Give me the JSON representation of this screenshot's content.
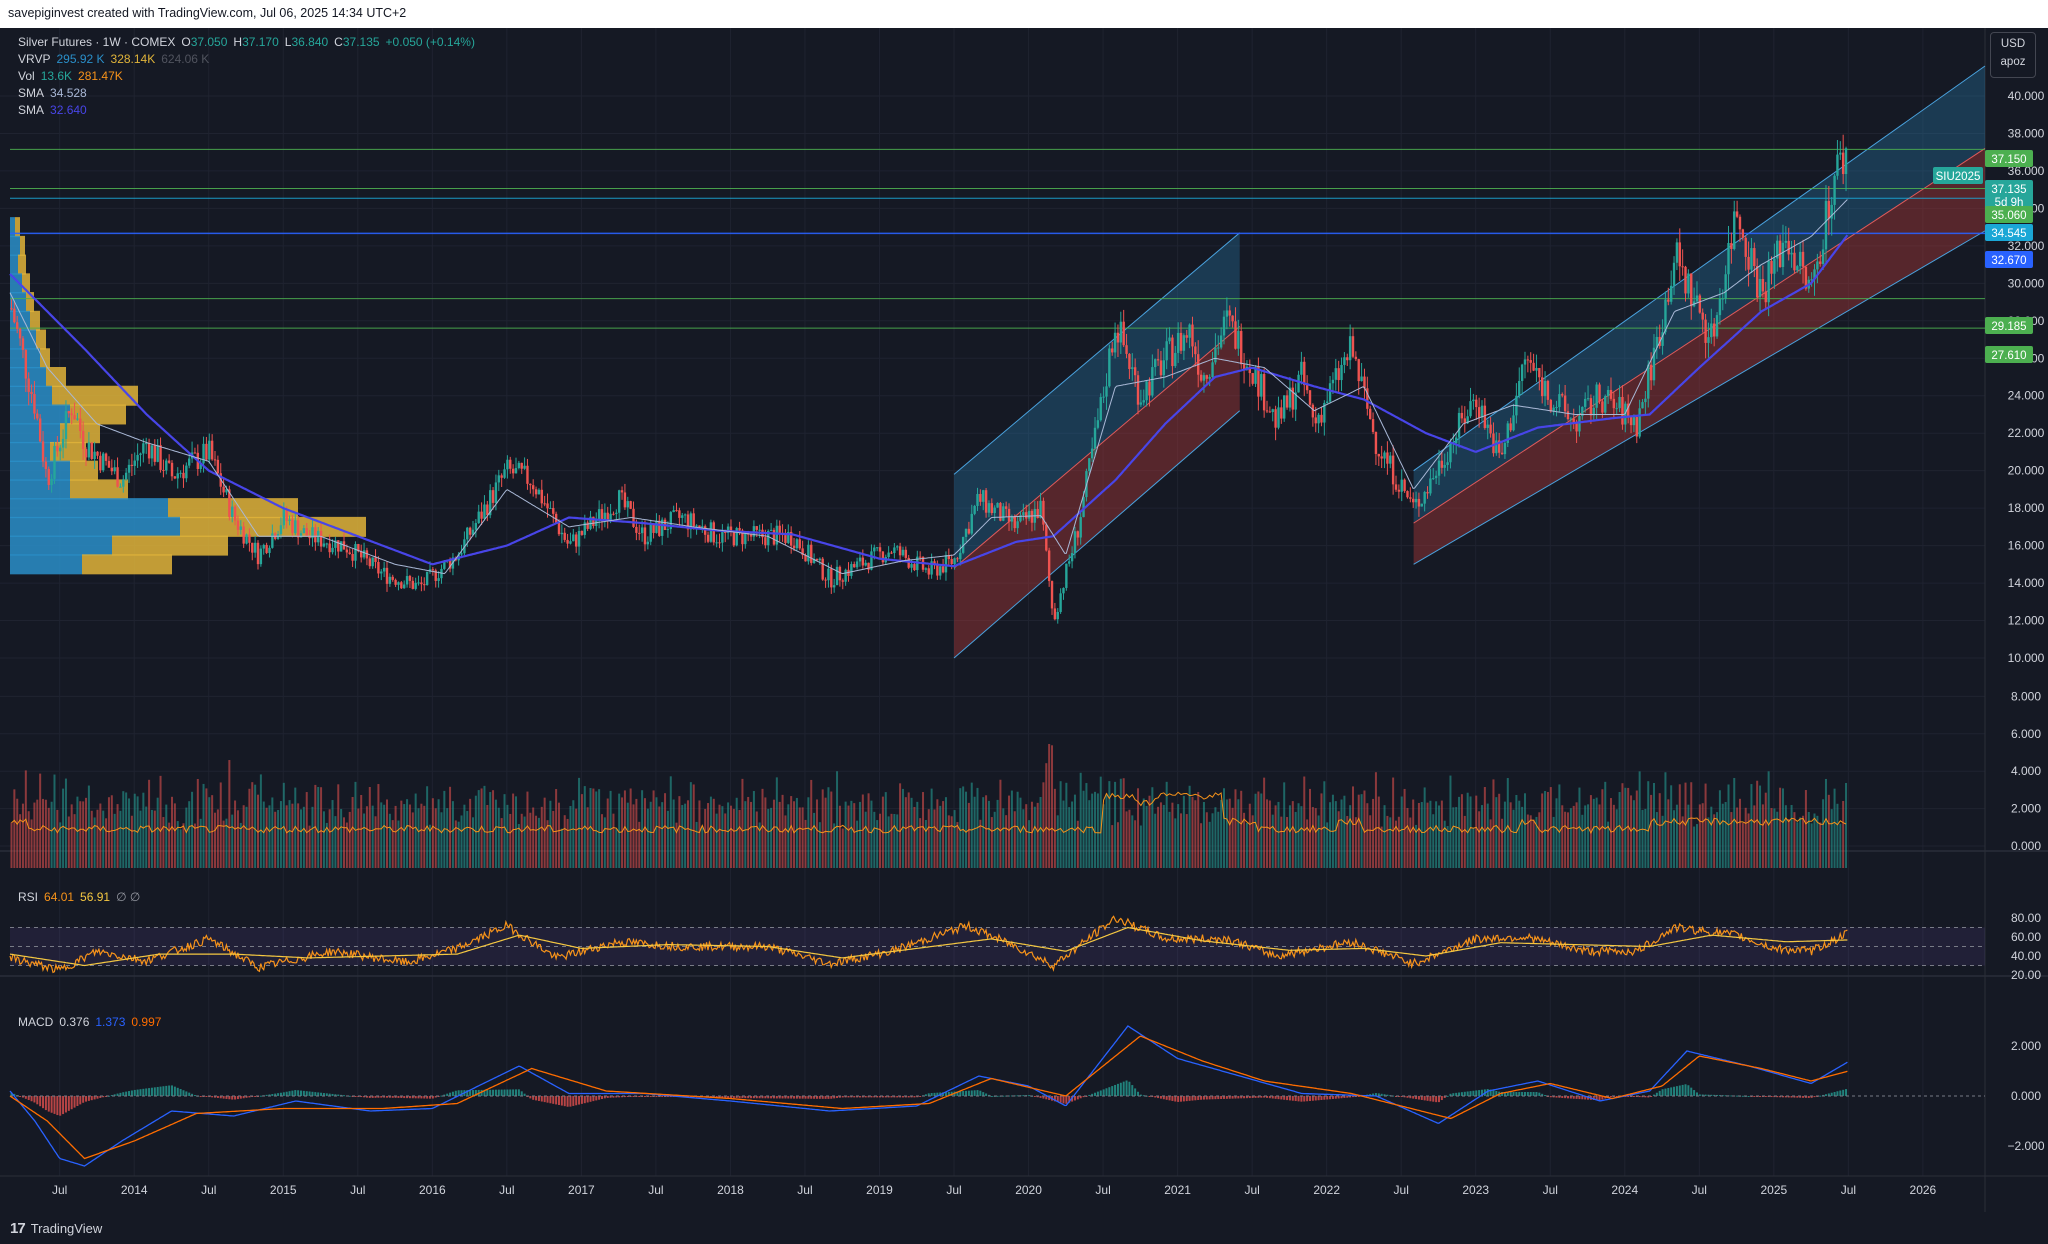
{
  "header": {
    "created_by": "savepiginvest created with TradingView.com, Jul 06, 2025 14:34 UTC+2"
  },
  "footer": {
    "logo_glyph": "17",
    "brand": "TradingView"
  },
  "legend": {
    "symbol": "Silver Futures · 1W · COMEX",
    "open_label": "O",
    "open": "37.050",
    "high_label": "H",
    "high": "37.170",
    "low_label": "L",
    "low": "36.840",
    "close_label": "C",
    "close": "37.135",
    "change": "+0.050 (+0.14%)",
    "vrvp_label": "VRVP",
    "vrvp_up": "295.92 K",
    "vrvp_down": "328.14K",
    "vrvp_total": "624.06 K",
    "vol_label": "Vol",
    "vol_a": "13.6K",
    "vol_b": "281.47K",
    "sma1_label": "SMA",
    "sma1": "34.528",
    "sma2_label": "SMA",
    "sma2": "32.640"
  },
  "scale": {
    "currency": "USD",
    "mode": "apoz"
  },
  "rsi_legend": {
    "label": "RSI",
    "v1": "64.01",
    "v2": "56.91",
    "v3": "∅ ∅"
  },
  "macd_legend": {
    "label": "MACD",
    "v1": "0.376",
    "v2": "1.373",
    "v3": "0.997"
  },
  "colors": {
    "bg": "#151924",
    "grid": "#1f2330",
    "up": "#26a69a",
    "down": "#ef5350",
    "sma_slow": "#4845e8",
    "sma_fast": "#a9b8d6",
    "channel_up": "#2a8fc9",
    "channel_down": "#b13a3a",
    "rsi": "#f7931a",
    "rsi_ma": "#f5c842",
    "macd": "#2962ff",
    "signal": "#ff6d00",
    "hline_green": "#4caf50",
    "hline_blue": "#2962ff"
  },
  "price_axis": {
    "labels": [
      "40.000",
      "38.000",
      "36.000",
      "34.000",
      "32.000",
      "30.000",
      "28.000",
      "26.000",
      "24.000",
      "22.000",
      "20.000",
      "18.000",
      "16.000",
      "14.000",
      "12.000",
      "10.000"
    ],
    "volume_labels": [
      "8.000",
      "6.000",
      "4.000",
      "2.000",
      "0.000"
    ],
    "rsi_labels": [
      "80.00",
      "60.00",
      "40.00",
      "20.00"
    ],
    "macd_labels": [
      "2.000",
      "0.000",
      "−2.000"
    ]
  },
  "time_axis": {
    "labels": [
      "Jul",
      "2014",
      "Jul",
      "2015",
      "Jul",
      "2016",
      "Jul",
      "2017",
      "Jul",
      "2018",
      "Jul",
      "2019",
      "Jul",
      "2020",
      "Jul",
      "2021",
      "Jul",
      "2022",
      "Jul",
      "2023",
      "Jul",
      "2024",
      "Jul",
      "2025",
      "Jul",
      "2026"
    ]
  },
  "badges": [
    {
      "text": "37.150",
      "kind": "green"
    },
    {
      "text": "SIU2025",
      "kind": "teal"
    },
    {
      "text": "37.135",
      "kind": "teal"
    },
    {
      "text": "5d 9h",
      "kind": "teal"
    },
    {
      "text": "35.060",
      "kind": "green"
    },
    {
      "text": "34.545",
      "kind": "cyan"
    },
    {
      "text": "32.670",
      "kind": "blue"
    },
    {
      "text": "29.185",
      "kind": "green"
    },
    {
      "text": "27.610",
      "kind": "green"
    }
  ],
  "chart_data": {
    "type": "candlestick",
    "title": "Silver Futures · 1W · COMEX",
    "ylim": [
      10,
      42
    ],
    "x_range": [
      "2013-03",
      "2026-06"
    ],
    "log_scale": false,
    "grid": true,
    "horizontal_levels": [
      37.15,
      35.06,
      34.545,
      32.67,
      29.185,
      27.61
    ],
    "close_path": [
      [
        "2013-03",
        29.0
      ],
      [
        "2013-05",
        23.5
      ],
      [
        "2013-06",
        19.5
      ],
      [
        "2013-08",
        23.5
      ],
      [
        "2013-09",
        21.5
      ],
      [
        "2013-12",
        19.5
      ],
      [
        "2014-02",
        21.5
      ],
      [
        "2014-04",
        19.7
      ],
      [
        "2014-07",
        21.0
      ],
      [
        "2014-09",
        17.5
      ],
      [
        "2014-11",
        15.5
      ],
      [
        "2015-01",
        17.5
      ],
      [
        "2015-03",
        16.5
      ],
      [
        "2015-06",
        16.0
      ],
      [
        "2015-09",
        14.5
      ],
      [
        "2015-12",
        13.8
      ],
      [
        "2016-03",
        15.5
      ],
      [
        "2016-07",
        20.0
      ],
      [
        "2016-09",
        19.5
      ],
      [
        "2016-12",
        16.0
      ],
      [
        "2017-04",
        18.5
      ],
      [
        "2017-06",
        16.5
      ],
      [
        "2017-09",
        17.5
      ],
      [
        "2017-12",
        16.5
      ],
      [
        "2018-03",
        16.5
      ],
      [
        "2018-06",
        16.5
      ],
      [
        "2018-09",
        14.2
      ],
      [
        "2018-12",
        15.2
      ],
      [
        "2019-02",
        15.8
      ],
      [
        "2019-05",
        14.6
      ],
      [
        "2019-07",
        15.2
      ],
      [
        "2019-09",
        18.5
      ],
      [
        "2019-12",
        17.0
      ],
      [
        "2020-02",
        18.0
      ],
      [
        "2020-03",
        12.0
      ],
      [
        "2020-05",
        17.0
      ],
      [
        "2020-07",
        24.0
      ],
      [
        "2020-08",
        28.0
      ],
      [
        "2020-10",
        24.0
      ],
      [
        "2020-12",
        26.0
      ],
      [
        "2021-02",
        27.5
      ],
      [
        "2021-03",
        25.0
      ],
      [
        "2021-05",
        28.0
      ],
      [
        "2021-07",
        25.5
      ],
      [
        "2021-09",
        22.5
      ],
      [
        "2021-11",
        25.0
      ],
      [
        "2021-12",
        22.5
      ],
      [
        "2022-03",
        26.5
      ],
      [
        "2022-05",
        21.5
      ],
      [
        "2022-08",
        18.0
      ],
      [
        "2022-09",
        19.0
      ],
      [
        "2022-11",
        21.5
      ],
      [
        "2023-01",
        24.0
      ],
      [
        "2023-03",
        20.5
      ],
      [
        "2023-05",
        26.0
      ],
      [
        "2023-07",
        24.0
      ],
      [
        "2023-09",
        22.5
      ],
      [
        "2023-11",
        24.0
      ],
      [
        "2024-02",
        22.5
      ],
      [
        "2024-04",
        28.0
      ],
      [
        "2024-05",
        31.5
      ],
      [
        "2024-08",
        27.0
      ],
      [
        "2024-10",
        34.0
      ],
      [
        "2024-12",
        29.5
      ],
      [
        "2025-02",
        32.5
      ],
      [
        "2025-04",
        29.5
      ],
      [
        "2025-05",
        33.0
      ],
      [
        "2025-06",
        36.0
      ],
      [
        "2025-07",
        37.135
      ]
    ],
    "sma_slow_path": [
      [
        "2013-03",
        30.5
      ],
      [
        "2013-09",
        26.5
      ],
      [
        "2014-02",
        23.0
      ],
      [
        "2014-07",
        20.0
      ],
      [
        "2015-01",
        18.0
      ],
      [
        "2015-07",
        16.5
      ],
      [
        "2016-01",
        15.0
      ],
      [
        "2016-07",
        16.0
      ],
      [
        "2016-12",
        17.5
      ],
      [
        "2017-06",
        17.2
      ],
      [
        "2017-12",
        16.8
      ],
      [
        "2018-06",
        16.6
      ],
      [
        "2019-01",
        15.3
      ],
      [
        "2019-07",
        14.9
      ],
      [
        "2019-12",
        16.2
      ],
      [
        "2020-03",
        16.5
      ],
      [
        "2020-08",
        19.5
      ],
      [
        "2020-12",
        22.5
      ],
      [
        "2021-04",
        25.0
      ],
      [
        "2021-07",
        25.5
      ],
      [
        "2021-12",
        24.5
      ],
      [
        "2022-04",
        23.8
      ],
      [
        "2022-09",
        22.0
      ],
      [
        "2023-01",
        21.0
      ],
      [
        "2023-06",
        22.3
      ],
      [
        "2023-12",
        22.8
      ],
      [
        "2024-03",
        23.0
      ],
      [
        "2024-07",
        25.5
      ],
      [
        "2024-12",
        28.5
      ],
      [
        "2025-04",
        30.0
      ],
      [
        "2025-07",
        32.64
      ]
    ],
    "sma_fast_path": [
      [
        "2013-03",
        29.5
      ],
      [
        "2013-06",
        25.5
      ],
      [
        "2013-10",
        22.5
      ],
      [
        "2014-02",
        21.5
      ],
      [
        "2014-07",
        20.5
      ],
      [
        "2014-11",
        16.5
      ],
      [
        "2015-04",
        16.5
      ],
      [
        "2015-10",
        15.0
      ],
      [
        "2016-02",
        14.5
      ],
      [
        "2016-07",
        19.0
      ],
      [
        "2016-12",
        17.0
      ],
      [
        "2017-05",
        17.5
      ],
      [
        "2017-10",
        17.0
      ],
      [
        "2018-04",
        16.5
      ],
      [
        "2018-10",
        14.5
      ],
      [
        "2019-03",
        15.2
      ],
      [
        "2019-07",
        15.5
      ],
      [
        "2019-10",
        17.5
      ],
      [
        "2020-02",
        17.6
      ],
      [
        "2020-04",
        15.5
      ],
      [
        "2020-08",
        24.5
      ],
      [
        "2020-12",
        25.0
      ],
      [
        "2021-04",
        26.0
      ],
      [
        "2021-08",
        25.5
      ],
      [
        "2021-12",
        23.2
      ],
      [
        "2022-04",
        24.5
      ],
      [
        "2022-08",
        19.0
      ],
      [
        "2022-12",
        22.5
      ],
      [
        "2023-04",
        23.5
      ],
      [
        "2023-09",
        23.0
      ],
      [
        "2024-01",
        23.0
      ],
      [
        "2024-05",
        28.5
      ],
      [
        "2024-09",
        29.5
      ],
      [
        "2024-12",
        31.0
      ],
      [
        "2025-04",
        32.5
      ],
      [
        "2025-07",
        34.528
      ]
    ],
    "channels": [
      {
        "x": [
          "2019-07",
          "2021-06"
        ],
        "top": [
          19.8,
          32.7
        ],
        "mid": [
          14.8,
          27.7
        ],
        "bottom": [
          10.0,
          23.2
        ]
      },
      {
        "x": [
          "2022-08",
          "2026-06"
        ],
        "top": [
          20.0,
          41.6
        ],
        "mid": [
          17.2,
          37.2
        ],
        "bottom": [
          15.0,
          32.8
        ]
      }
    ],
    "volume_profile": [
      {
        "price": 33.0,
        "up": 5,
        "down": 10
      },
      {
        "price": 32.0,
        "up": 10,
        "down": 15
      },
      {
        "price": 31.0,
        "up": 8,
        "down": 16
      },
      {
        "price": 30.0,
        "up": 12,
        "down": 20
      },
      {
        "price": 29.0,
        "up": 16,
        "down": 24
      },
      {
        "price": 28.0,
        "up": 20,
        "down": 30
      },
      {
        "price": 27.0,
        "up": 26,
        "down": 36
      },
      {
        "price": 26.0,
        "up": 30,
        "down": 40
      },
      {
        "price": 25.0,
        "up": 36,
        "down": 56
      },
      {
        "price": 24.0,
        "up": 42,
        "down": 128
      },
      {
        "price": 23.0,
        "up": 60,
        "down": 116
      },
      {
        "price": 22.0,
        "up": 50,
        "down": 90
      },
      {
        "price": 21.0,
        "up": 40,
        "down": 76
      },
      {
        "price": 20.0,
        "up": 60,
        "down": 88
      },
      {
        "price": 19.0,
        "up": 60,
        "down": 118
      },
      {
        "price": 18.0,
        "up": 158,
        "down": 288
      },
      {
        "price": 17.0,
        "up": 170,
        "down": 356
      },
      {
        "price": 16.0,
        "up": 102,
        "down": 218
      },
      {
        "price": 15.0,
        "up": 72,
        "down": 162
      }
    ],
    "rsi_path": [
      [
        "2013-03",
        38
      ],
      [
        "2013-07",
        25
      ],
      [
        "2013-10",
        45
      ],
      [
        "2014-02",
        35
      ],
      [
        "2014-07",
        58
      ],
      [
        "2014-11",
        28
      ],
      [
        "2015-05",
        45
      ],
      [
        "2015-11",
        33
      ],
      [
        "2016-03",
        48
      ],
      [
        "2016-07",
        72
      ],
      [
        "2016-11",
        38
      ],
      [
        "2017-04",
        55
      ],
      [
        "2017-09",
        50
      ],
      [
        "2018-04",
        50
      ],
      [
        "2018-09",
        32
      ],
      [
        "2019-02",
        45
      ],
      [
        "2019-08",
        72
      ],
      [
        "2019-12",
        50
      ],
      [
        "2020-03",
        30
      ],
      [
        "2020-08",
        80
      ],
      [
        "2020-12",
        58
      ],
      [
        "2021-05",
        58
      ],
      [
        "2021-09",
        40
      ],
      [
        "2022-03",
        55
      ],
      [
        "2022-08",
        32
      ],
      [
        "2023-01",
        58
      ],
      [
        "2023-05",
        60
      ],
      [
        "2023-10",
        45
      ],
      [
        "2024-02",
        45
      ],
      [
        "2024-05",
        70
      ],
      [
        "2024-10",
        62
      ],
      [
        "2025-01",
        48
      ],
      [
        "2025-04",
        45
      ],
      [
        "2025-07",
        64.01
      ]
    ],
    "rsi_ma_path": [
      [
        "2013-03",
        42
      ],
      [
        "2013-09",
        30
      ],
      [
        "2014-03",
        42
      ],
      [
        "2014-09",
        42
      ],
      [
        "2015-03",
        38
      ],
      [
        "2015-09",
        40
      ],
      [
        "2016-03",
        42
      ],
      [
        "2016-08",
        62
      ],
      [
        "2017-01",
        48
      ],
      [
        "2017-08",
        52
      ],
      [
        "2018-04",
        50
      ],
      [
        "2018-10",
        38
      ],
      [
        "2019-04",
        48
      ],
      [
        "2019-10",
        58
      ],
      [
        "2020-04",
        45
      ],
      [
        "2020-09",
        70
      ],
      [
        "2021-03",
        56
      ],
      [
        "2021-10",
        46
      ],
      [
        "2022-04",
        48
      ],
      [
        "2022-09",
        40
      ],
      [
        "2023-03",
        54
      ],
      [
        "2023-09",
        52
      ],
      [
        "2024-03",
        50
      ],
      [
        "2024-08",
        62
      ],
      [
        "2025-02",
        55
      ],
      [
        "2025-07",
        56.91
      ]
    ],
    "macd_path": [
      [
        "2013-03",
        0.2
      ],
      [
        "2013-05",
        -1.0
      ],
      [
        "2013-07",
        -2.5
      ],
      [
        "2013-09",
        -2.8
      ],
      [
        "2013-12",
        -1.8
      ],
      [
        "2014-04",
        -0.6
      ],
      [
        "2014-09",
        -0.8
      ],
      [
        "2015-02",
        -0.2
      ],
      [
        "2015-08",
        -0.6
      ],
      [
        "2016-01",
        -0.5
      ],
      [
        "2016-08",
        1.2
      ],
      [
        "2016-12",
        0.1
      ],
      [
        "2017-06",
        0.1
      ],
      [
        "2018-01",
        -0.2
      ],
      [
        "2018-09",
        -0.6
      ],
      [
        "2019-04",
        -0.4
      ],
      [
        "2019-09",
        0.8
      ],
      [
        "2020-01",
        0.4
      ],
      [
        "2020-04",
        -0.4
      ],
      [
        "2020-09",
        2.8
      ],
      [
        "2021-01",
        1.5
      ],
      [
        "2021-06",
        0.8
      ],
      [
        "2021-11",
        0.1
      ],
      [
        "2022-05",
        0.0
      ],
      [
        "2022-10",
        -1.1
      ],
      [
        "2023-02",
        0.2
      ],
      [
        "2023-06",
        0.6
      ],
      [
        "2023-11",
        -0.2
      ],
      [
        "2024-03",
        0.2
      ],
      [
        "2024-06",
        1.8
      ],
      [
        "2024-11",
        1.2
      ],
      [
        "2025-04",
        0.5
      ],
      [
        "2025-07",
        1.373
      ]
    ],
    "signal_path": [
      [
        "2013-03",
        0.0
      ],
      [
        "2013-06",
        -1.0
      ],
      [
        "2013-09",
        -2.5
      ],
      [
        "2014-01",
        -1.8
      ],
      [
        "2014-06",
        -0.7
      ],
      [
        "2015-01",
        -0.5
      ],
      [
        "2015-09",
        -0.5
      ],
      [
        "2016-03",
        -0.3
      ],
      [
        "2016-09",
        1.1
      ],
      [
        "2017-03",
        0.2
      ],
      [
        "2018-01",
        -0.1
      ],
      [
        "2018-10",
        -0.5
      ],
      [
        "2019-05",
        -0.3
      ],
      [
        "2019-10",
        0.7
      ],
      [
        "2020-04",
        0.0
      ],
      [
        "2020-10",
        2.4
      ],
      [
        "2021-03",
        1.4
      ],
      [
        "2021-08",
        0.6
      ],
      [
        "2022-03",
        0.1
      ],
      [
        "2022-11",
        -0.9
      ],
      [
        "2023-03",
        0.1
      ],
      [
        "2023-07",
        0.5
      ],
      [
        "2023-12",
        -0.1
      ],
      [
        "2024-04",
        0.4
      ],
      [
        "2024-07",
        1.6
      ],
      [
        "2024-12",
        1.1
      ],
      [
        "2025-04",
        0.6
      ],
      [
        "2025-07",
        0.997
      ]
    ]
  }
}
